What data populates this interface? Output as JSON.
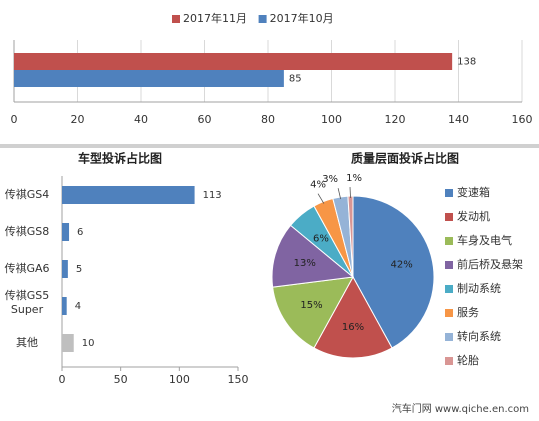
{
  "watermark": "汽车门网 www.qiche.en.com",
  "chart_data": [
    {
      "type": "bar",
      "orientation": "horizontal",
      "categories": [
        ""
      ],
      "series": [
        {
          "name": "2017年11月",
          "values": [
            138
          ],
          "color": "#C0504D"
        },
        {
          "name": "2017年10月",
          "values": [
            85
          ],
          "color": "#4F81BD"
        }
      ],
      "xlim": [
        0,
        160
      ],
      "xticks": [
        0,
        20,
        40,
        60,
        80,
        100,
        120,
        140,
        160
      ],
      "legend_position": "top",
      "grid": true
    },
    {
      "type": "bar",
      "orientation": "horizontal",
      "title": "车型投诉占比图",
      "categories": [
        "传祺GS4",
        "传祺GS8",
        "传祺GA6",
        "传祺GS5 Super",
        "其他"
      ],
      "values": [
        113,
        6,
        5,
        4,
        10
      ],
      "colors": [
        "#4F81BD",
        "#4F81BD",
        "#4F81BD",
        "#4F81BD",
        "#BFBFBF"
      ],
      "xlim": [
        0,
        150
      ],
      "xticks": [
        0,
        50,
        100,
        150
      ],
      "grid": false
    },
    {
      "type": "pie",
      "title": "质量层面投诉占比图",
      "labels": [
        "变速箱",
        "发动机",
        "车身及电气",
        "前后桥及悬架",
        "制动系统",
        "服务",
        "转向系统",
        "轮胎"
      ],
      "values": [
        42,
        16,
        15,
        13,
        6,
        4,
        3,
        1
      ],
      "value_labels": [
        "42%",
        "16%",
        "15%",
        "13%",
        "6%",
        "4%",
        "3%",
        "1%"
      ],
      "colors": [
        "#4F81BD",
        "#C0504D",
        "#9BBB59",
        "#8064A2",
        "#4BACC6",
        "#F79646",
        "#95B3D7",
        "#D99694"
      ],
      "legend_position": "right"
    }
  ]
}
